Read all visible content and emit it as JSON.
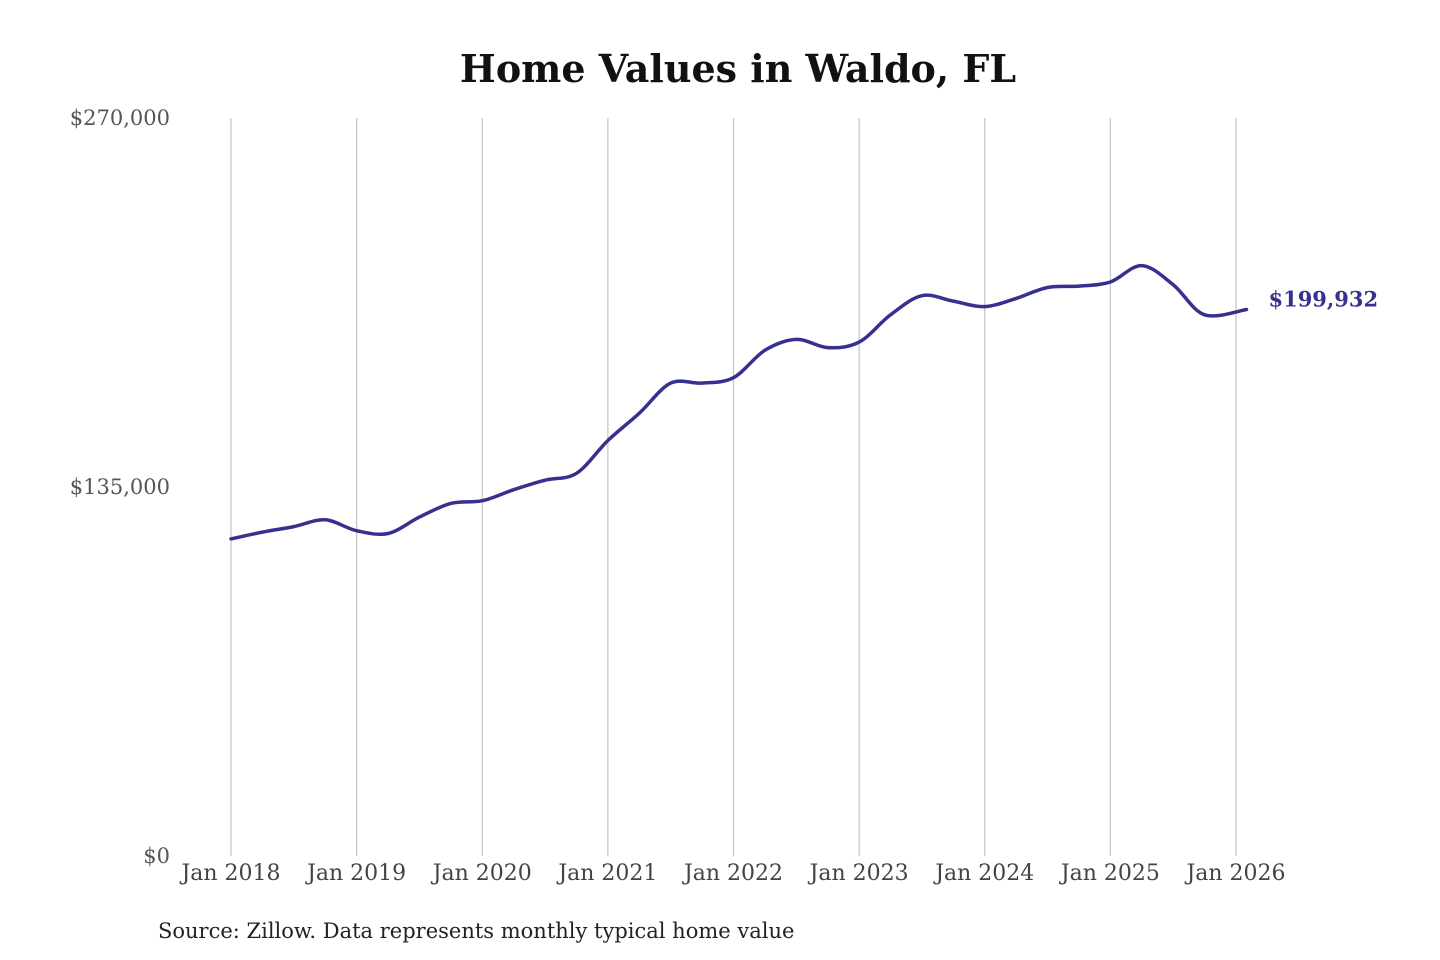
{
  "chart_data": {
    "type": "line",
    "title": "Home Values in Waldo, FL",
    "source": "Source: Zillow. Data represents monthly typical home value",
    "ylim": [
      0,
      270000
    ],
    "y_ticks": [
      {
        "value": 0,
        "label": "$0"
      },
      {
        "value": 135000,
        "label": "$135,000"
      },
      {
        "value": 270000,
        "label": "$270,000"
      }
    ],
    "x_ticks": [
      {
        "value": "2018-01",
        "label": "Jan 2018"
      },
      {
        "value": "2019-01",
        "label": "Jan 2019"
      },
      {
        "value": "2020-01",
        "label": "Jan 2020"
      },
      {
        "value": "2021-01",
        "label": "Jan 2021"
      },
      {
        "value": "2022-01",
        "label": "Jan 2022"
      },
      {
        "value": "2023-01",
        "label": "Jan 2023"
      },
      {
        "value": "2024-01",
        "label": "Jan 2024"
      },
      {
        "value": "2025-01",
        "label": "Jan 2025"
      },
      {
        "value": "2026-01",
        "label": "Jan 2026"
      }
    ],
    "grid": {
      "vertical": true,
      "horizontal": false
    },
    "line_color": "#36318f",
    "end_label": "$199,932",
    "series": [
      {
        "x": [
          "2018-01",
          "2018-04",
          "2018-07",
          "2018-10",
          "2019-01",
          "2019-04",
          "2019-07",
          "2019-10",
          "2020-01",
          "2020-04",
          "2020-07",
          "2020-10",
          "2021-01",
          "2021-04",
          "2021-07",
          "2021-10",
          "2022-01",
          "2022-04",
          "2022-07",
          "2022-10",
          "2023-01",
          "2023-04",
          "2023-07",
          "2023-10",
          "2024-01",
          "2024-04",
          "2024-07",
          "2024-10",
          "2025-01",
          "2025-04",
          "2025-07",
          "2025-10",
          "2026-02"
        ],
        "values": [
          116000,
          118500,
          120500,
          123000,
          119000,
          118000,
          124000,
          129000,
          130000,
          134000,
          137500,
          140000,
          152000,
          162000,
          173000,
          173000,
          175000,
          185000,
          189000,
          186000,
          188000,
          198000,
          205000,
          203000,
          201000,
          204000,
          208000,
          208500,
          210000,
          216000,
          209000,
          198000,
          199932
        ]
      }
    ]
  }
}
